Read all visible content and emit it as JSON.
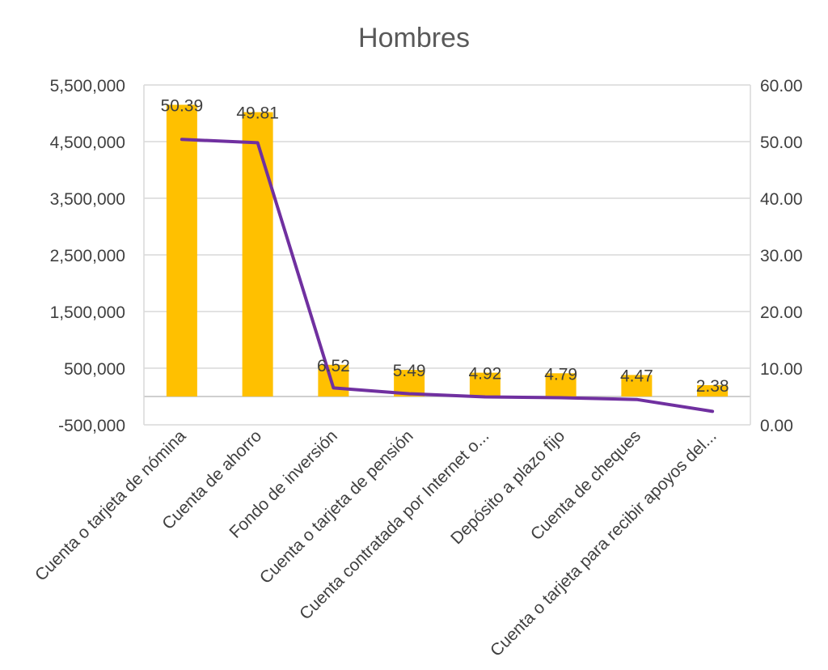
{
  "chart_data": {
    "type": "bar",
    "title": "Hombres",
    "categories": [
      "Cuenta o tarjeta de nómina",
      "Cuenta de ahorro",
      "Fondo de inversión",
      "Cuenta o tarjeta de pensión",
      "Cuenta contratada por Internet o...",
      "Depósito a plazo fijo",
      "Cuenta de cheques",
      "Cuenta o tarjeta para recibir apoyos del..."
    ],
    "series": [
      {
        "type": "bar",
        "axis": "left",
        "color": "#FFC000",
        "values": [
          5150000,
          5020000,
          560000,
          470000,
          420000,
          410000,
          380000,
          200000
        ]
      },
      {
        "type": "line",
        "axis": "right",
        "color": "#7030A0",
        "values": [
          50.39,
          49.81,
          6.52,
          5.49,
          4.92,
          4.79,
          4.47,
          2.38
        ],
        "data_labels": [
          "50.39",
          "49.81",
          "6.52",
          "5.49",
          "4.92",
          "4.79",
          "4.47",
          "2.38"
        ]
      }
    ],
    "y_left": {
      "range": [
        -500000,
        5500000
      ],
      "ticks": [
        5500000,
        4500000,
        3500000,
        2500000,
        1500000,
        500000,
        -500000
      ],
      "tick_labels": [
        "5,500,000",
        "4,500,000",
        "3,500,000",
        "2,500,000",
        "1,500,000",
        "500,000",
        "-500,000"
      ]
    },
    "y_right": {
      "range": [
        0,
        60
      ],
      "ticks": [
        60,
        50,
        40,
        30,
        20,
        10,
        0
      ],
      "tick_labels": [
        "60.00",
        "50.00",
        "40.00",
        "30.00",
        "20.00",
        "10.00",
        "0.00"
      ]
    },
    "grid": true,
    "legend": "none"
  }
}
